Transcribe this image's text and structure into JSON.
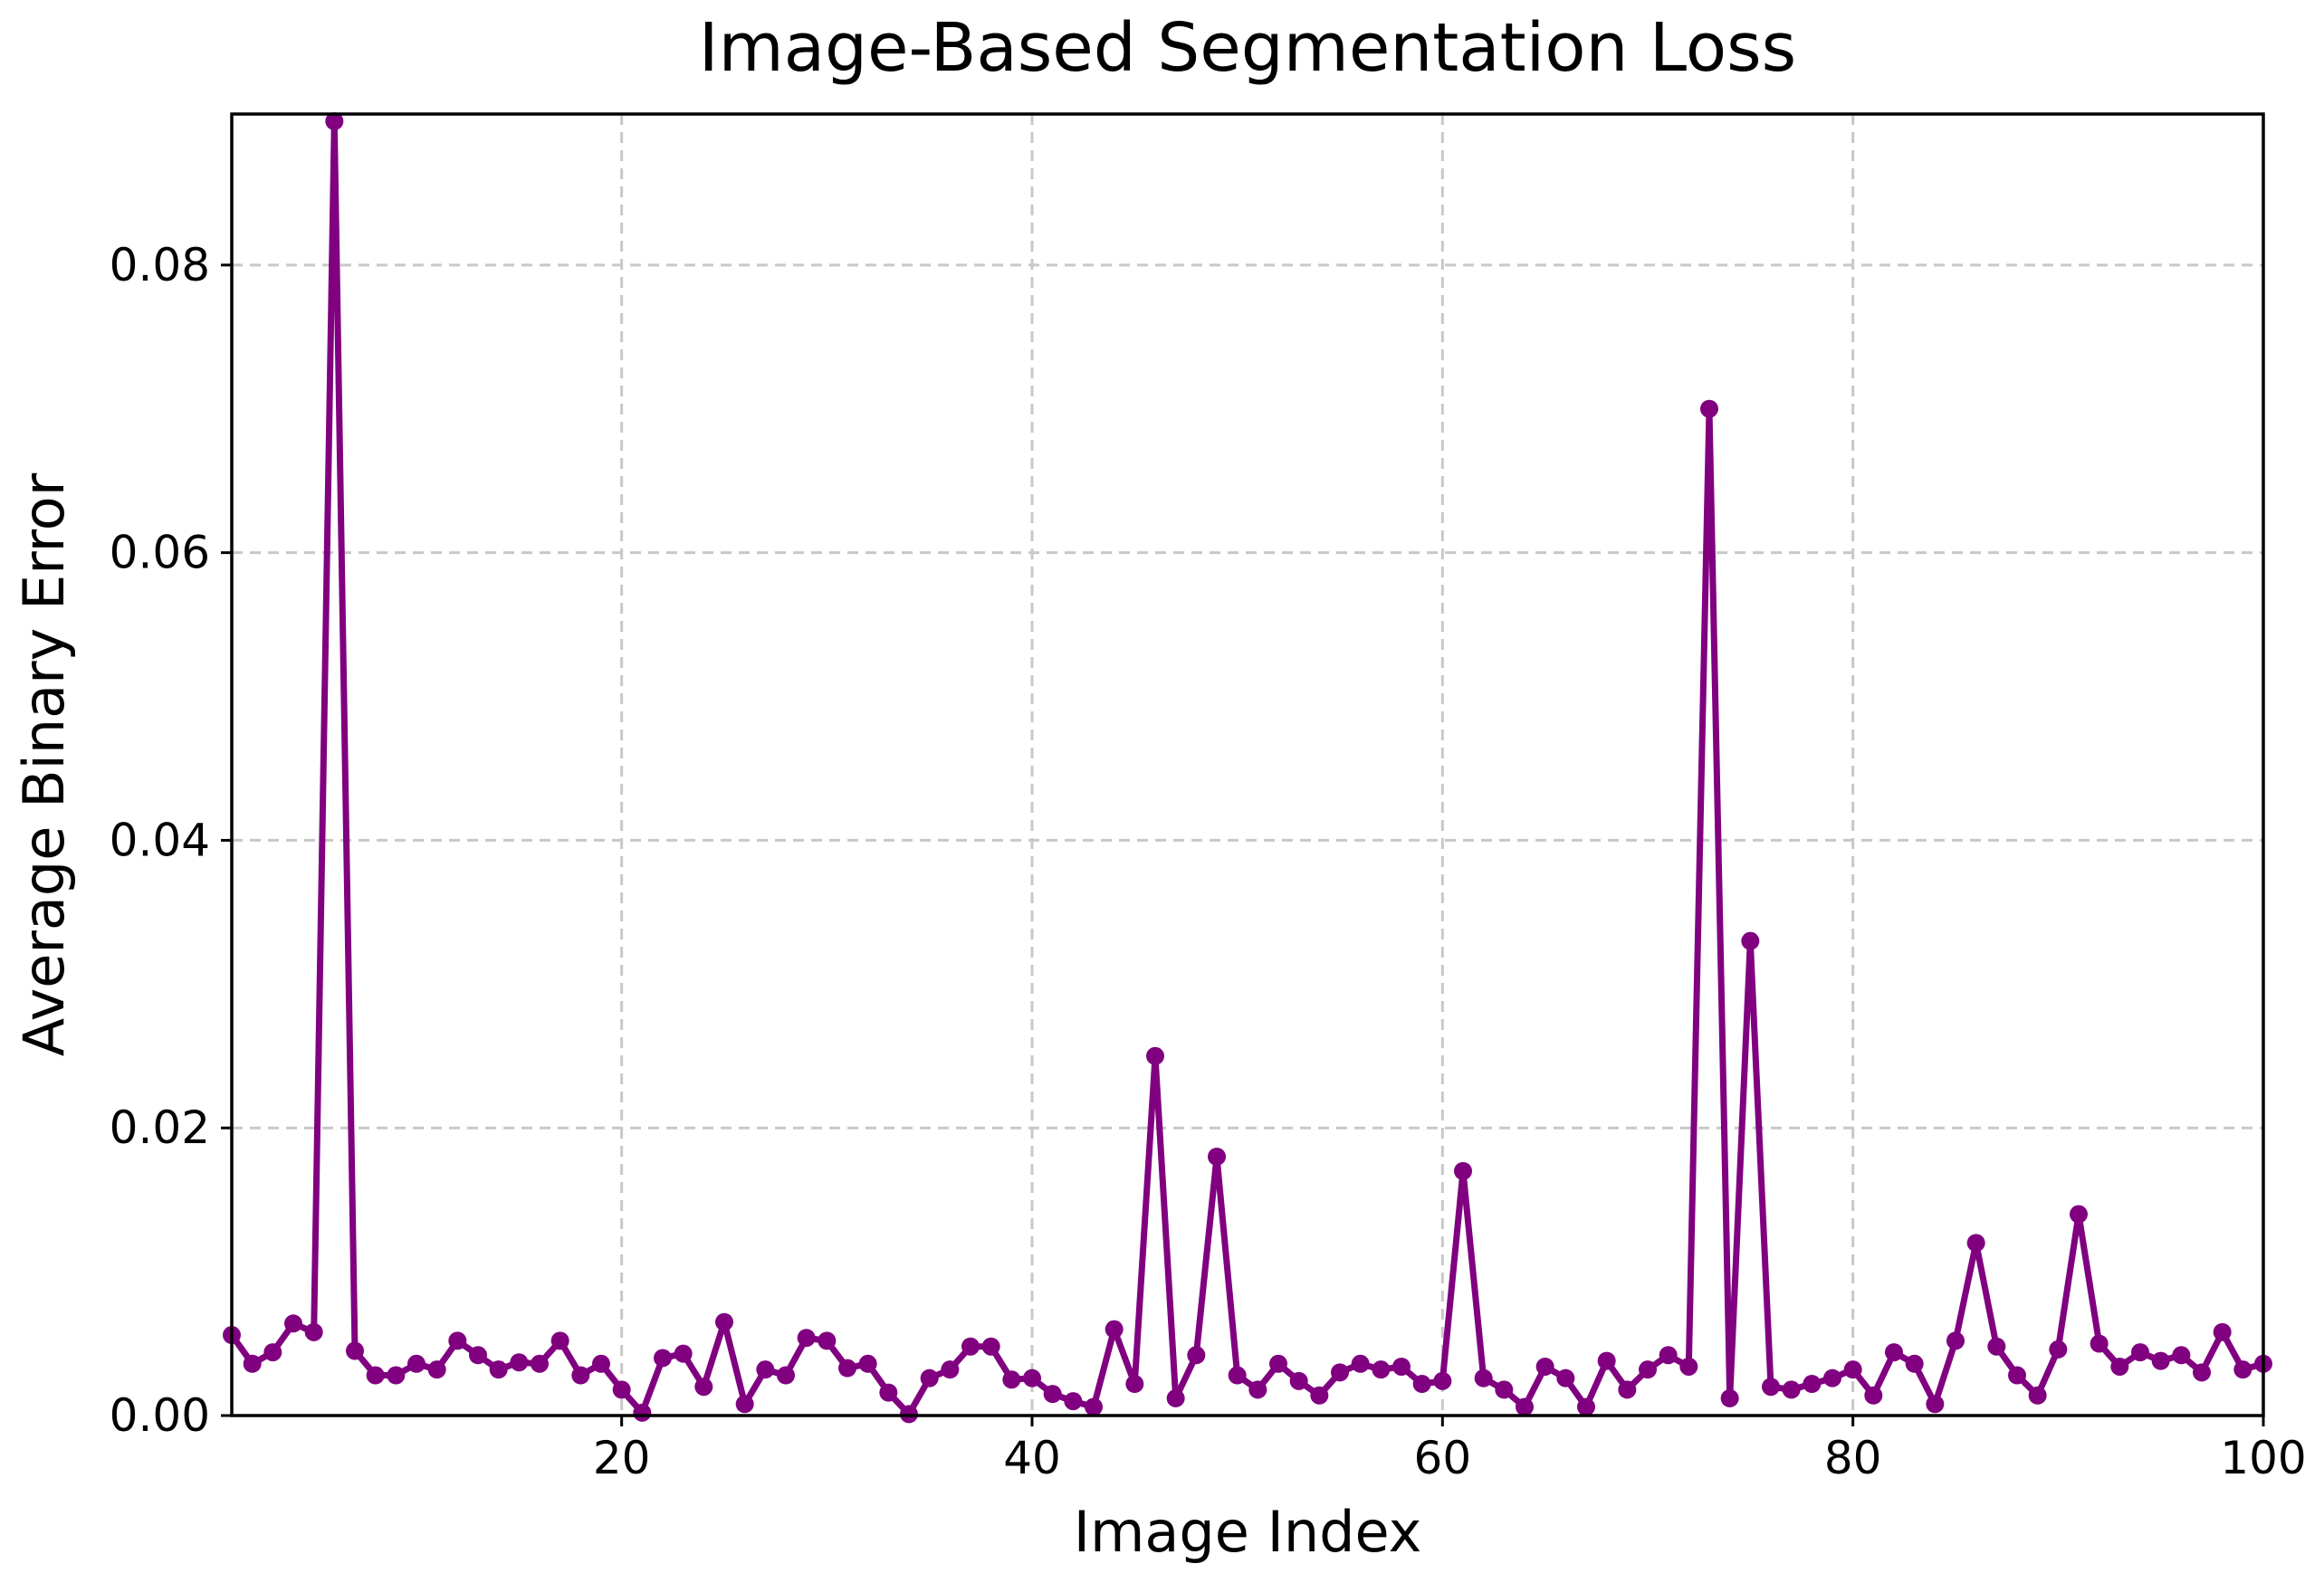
{
  "chart_data": {
    "type": "line",
    "title": "Image-Based Segmentation Loss",
    "xlabel": "Image Index",
    "ylabel": "Average Binary Error",
    "xlim": [
      1,
      100
    ],
    "ylim": [
      0,
      0.0905
    ],
    "xticks": [
      20,
      40,
      60,
      80,
      100
    ],
    "xtick_labels": [
      "20",
      "40",
      "60",
      "80",
      "100"
    ],
    "yticks": [
      0,
      0.02,
      0.04,
      0.06,
      0.08
    ],
    "ytick_labels": [
      "0.00",
      "0.02",
      "0.04",
      "0.06",
      "0.08"
    ],
    "grid": true,
    "legend": "none",
    "colors": {
      "line": "#800080",
      "grid": "#c8c8c8",
      "axes": "#000000"
    },
    "series": [
      {
        "x": [
          1,
          2,
          3,
          4,
          5,
          6,
          7,
          8,
          9,
          10,
          11,
          12,
          13,
          14,
          15,
          16,
          17,
          18,
          19,
          20,
          21,
          22,
          23,
          24,
          25,
          26,
          27,
          28,
          29,
          30,
          31,
          32,
          33,
          34,
          35,
          36,
          37,
          38,
          39,
          40,
          41,
          42,
          43,
          44,
          45,
          46,
          47,
          48,
          49,
          50,
          51,
          52,
          53,
          54,
          55,
          56,
          57,
          58,
          59,
          60,
          61,
          62,
          63,
          64,
          65,
          66,
          67,
          68,
          69,
          70,
          71,
          72,
          73,
          74,
          75,
          76,
          77,
          78,
          79,
          80,
          81,
          82,
          83,
          84,
          85,
          86,
          87,
          88,
          89,
          90,
          91,
          92,
          93,
          94,
          95,
          96,
          97,
          98,
          99,
          100
        ],
        "values": [
          0.0056,
          0.0036,
          0.0044,
          0.0064,
          0.0058,
          0.09,
          0.0045,
          0.0028,
          0.0028,
          0.0036,
          0.0032,
          0.0052,
          0.0042,
          0.0032,
          0.0037,
          0.0036,
          0.0052,
          0.0028,
          0.0036,
          0.0018,
          0.0002,
          0.004,
          0.0043,
          0.002,
          0.0065,
          0.0008,
          0.0032,
          0.0028,
          0.0054,
          0.0052,
          0.0033,
          0.0036,
          0.0016,
          0.0001,
          0.0026,
          0.0032,
          0.0048,
          0.0048,
          0.0025,
          0.0026,
          0.0015,
          0.001,
          0.0006,
          0.006,
          0.0022,
          0.025,
          0.0012,
          0.0042,
          0.018,
          0.0028,
          0.0018,
          0.0036,
          0.0024,
          0.0014,
          0.003,
          0.0036,
          0.0032,
          0.0034,
          0.0022,
          0.0024,
          0.017,
          0.0026,
          0.0018,
          0.0006,
          0.0034,
          0.0026,
          0.0006,
          0.0038,
          0.0018,
          0.0032,
          0.0042,
          0.0034,
          0.07,
          0.0012,
          0.033,
          0.002,
          0.0018,
          0.0022,
          0.0026,
          0.0032,
          0.0014,
          0.0044,
          0.0036,
          0.0008,
          0.0052,
          0.012,
          0.0048,
          0.0028,
          0.0014,
          0.0046,
          0.014,
          0.005,
          0.0034,
          0.0044,
          0.0038,
          0.0042,
          0.003,
          0.0058,
          0.0032,
          0.0036
        ]
      }
    ]
  }
}
